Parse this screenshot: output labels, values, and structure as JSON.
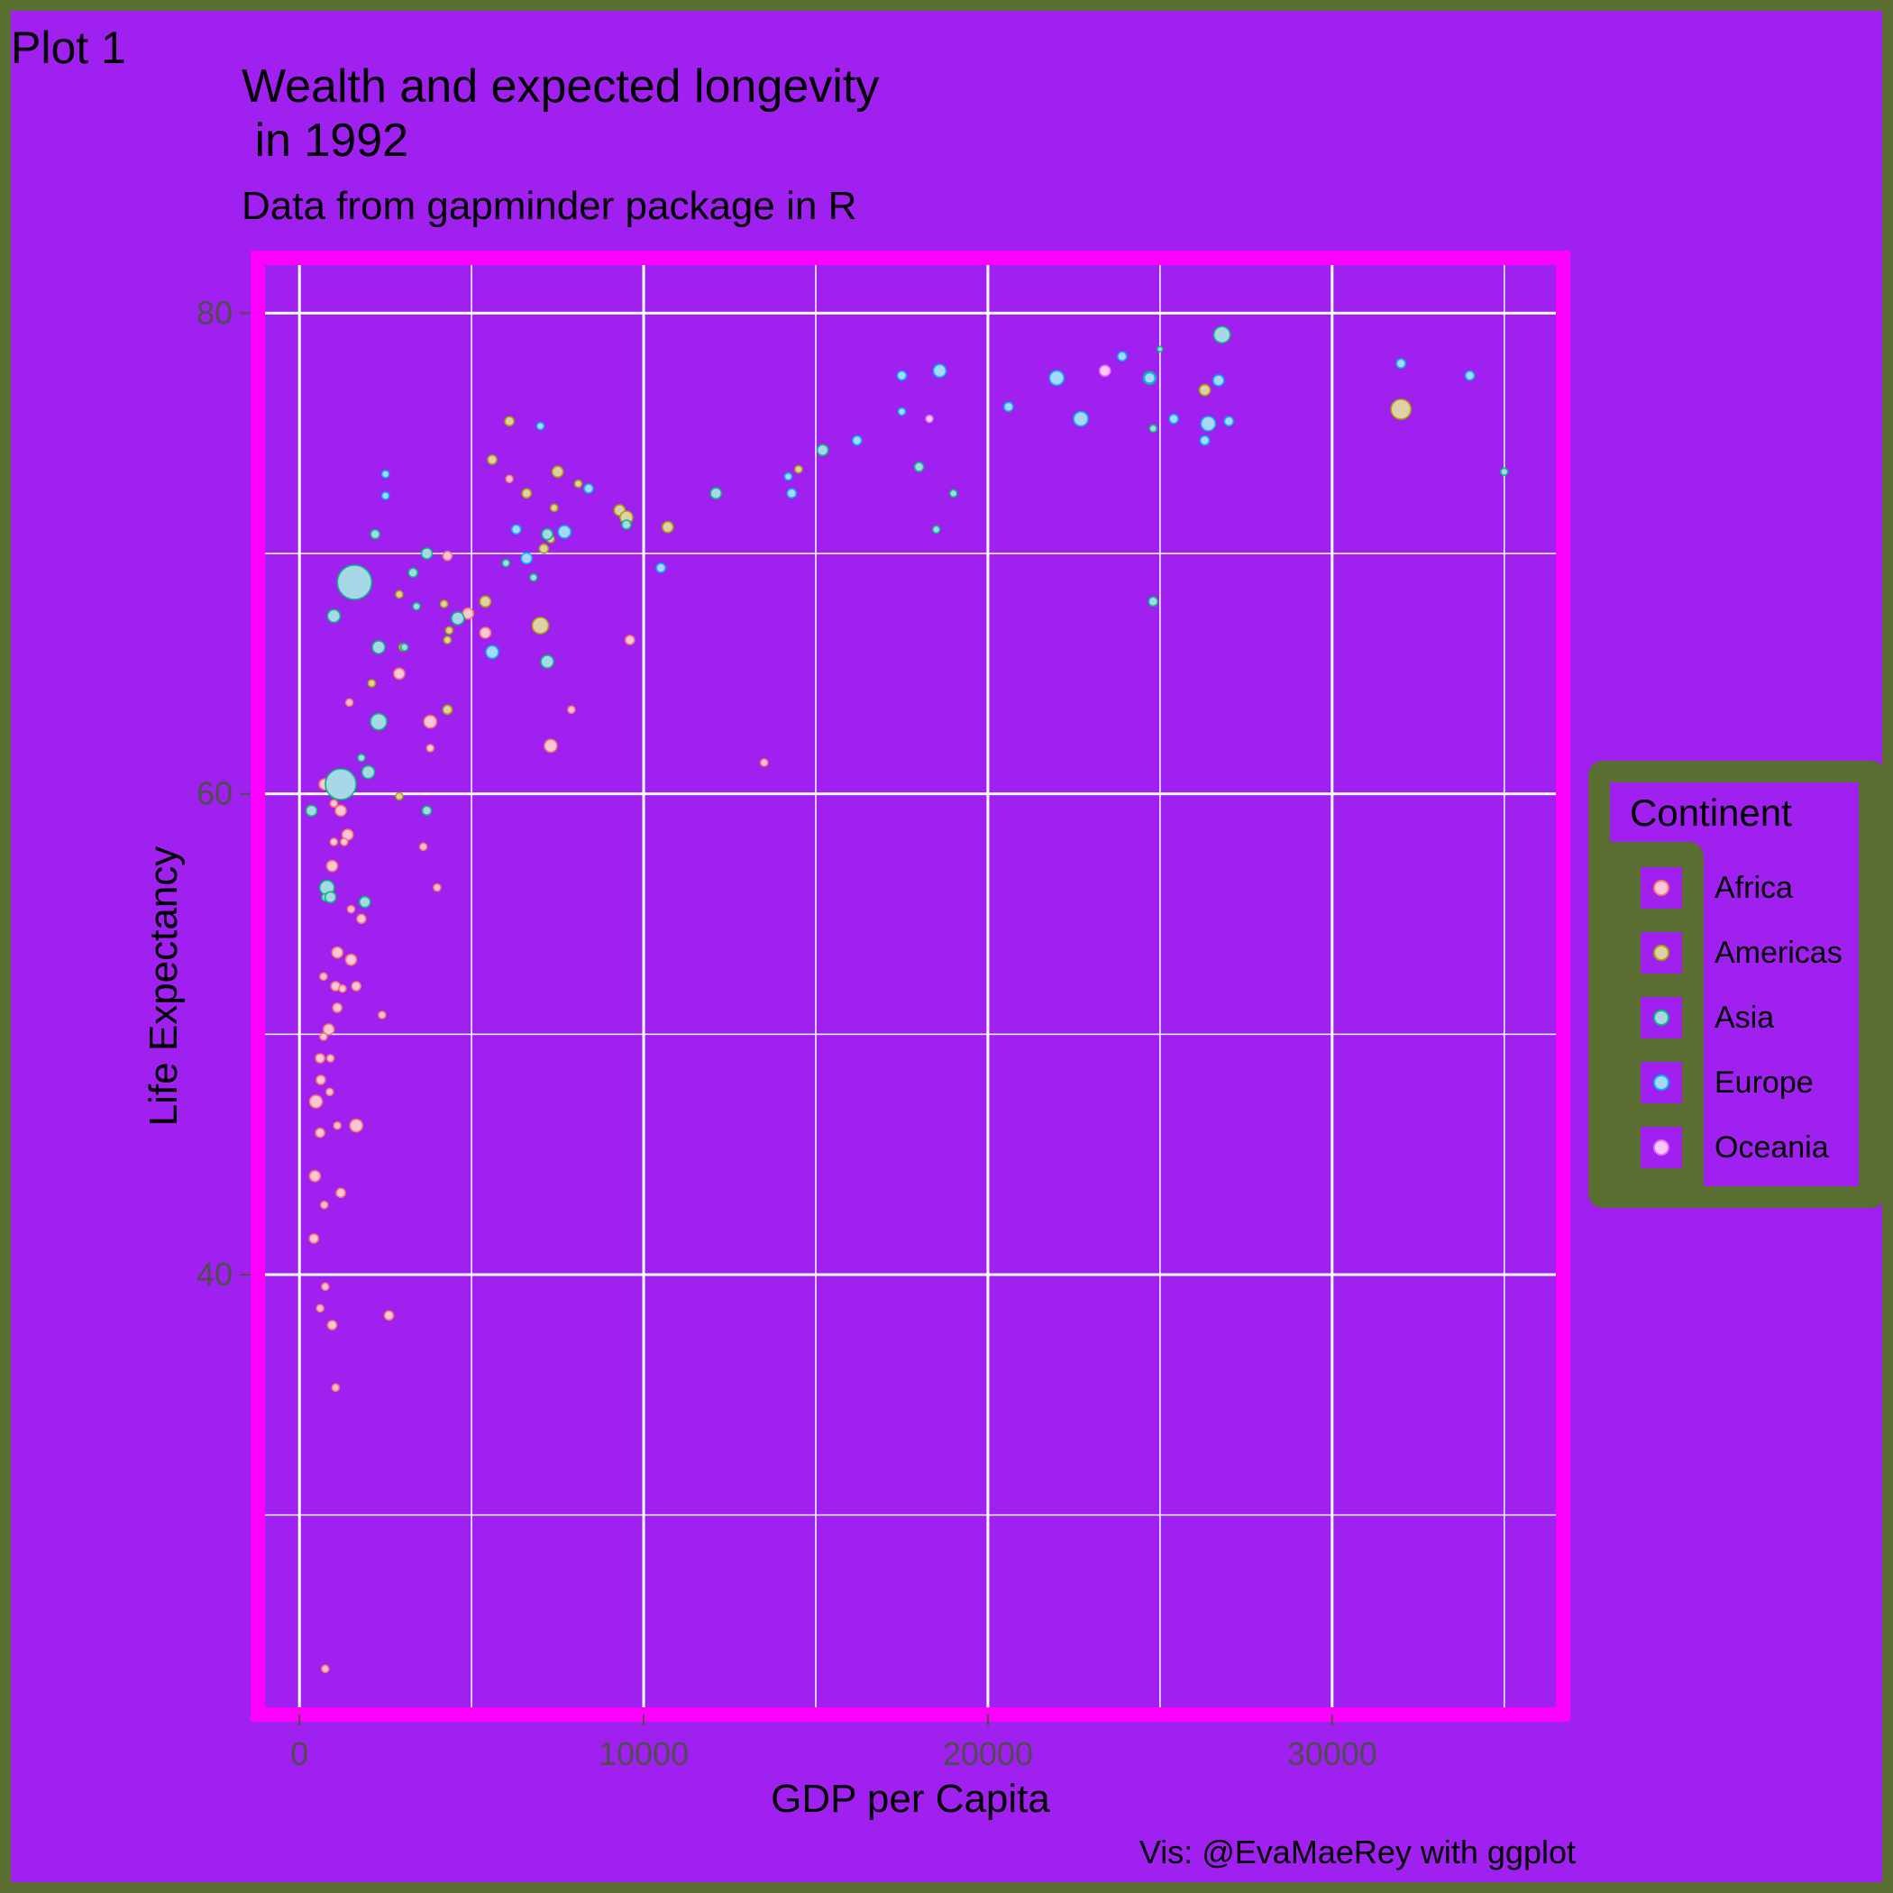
{
  "plot_tag": "Plot 1",
  "title": "Wealth and expected longevity\n in 1992",
  "subtitle": "Data from gapminder package in R",
  "caption": "Vis: @EvaMaeRey with ggplot",
  "colors": {
    "background": "#5a6e32",
    "panel": "#a020f0",
    "panel_border": "#ff00ff",
    "grid": "#ffffff",
    "continents": {
      "Africa": {
        "fill": "#f8c8d8",
        "stroke": "#f8766d"
      },
      "Americas": {
        "fill": "#e0d0a8",
        "stroke": "#a3a500"
      },
      "Asia": {
        "fill": "#a8d8e8",
        "stroke": "#00bf7d"
      },
      "Europe": {
        "fill": "#a8d8f8",
        "stroke": "#00b0f6"
      },
      "Oceania": {
        "fill": "#f8c8f8",
        "stroke": "#e76bf3"
      }
    }
  },
  "chart_data": {
    "type": "scatter",
    "xlabel": "GDP per Capita",
    "ylabel": "Life Expectancy",
    "xlim": [
      -1000,
      36500
    ],
    "ylim": [
      22,
      82
    ],
    "x_ticks": [
      0,
      10000,
      20000,
      30000
    ],
    "x_tick_labels": [
      "0",
      "10000",
      "20000",
      "30000"
    ],
    "y_ticks": [
      40,
      60,
      80
    ],
    "y_tick_labels": [
      "40",
      "60",
      "80"
    ],
    "grid": true,
    "legend_title": "Continent",
    "legend_position": "right",
    "legend_entries": [
      "Africa",
      "Americas",
      "Asia",
      "Europe",
      "Oceania"
    ],
    "series": [
      {
        "name": "Africa",
        "points": [
          [
            750,
            23.6,
            4
          ],
          [
            730,
            60.4,
            6
          ],
          [
            1000,
            59.6,
            4
          ],
          [
            1200,
            59.3,
            6
          ],
          [
            1400,
            58.3,
            6
          ],
          [
            1300,
            58.0,
            4
          ],
          [
            1000,
            58.0,
            4
          ],
          [
            950,
            57.0,
            6
          ],
          [
            1500,
            55.2,
            4
          ],
          [
            1100,
            53.4,
            6
          ],
          [
            1800,
            54.8,
            5
          ],
          [
            1500,
            53.1,
            6
          ],
          [
            700,
            52.4,
            4
          ],
          [
            1050,
            52.0,
            5
          ],
          [
            1250,
            51.9,
            4
          ],
          [
            1100,
            51.1,
            5
          ],
          [
            1650,
            52.0,
            5
          ],
          [
            2400,
            50.8,
            4
          ],
          [
            850,
            50.2,
            6
          ],
          [
            700,
            49.9,
            4
          ],
          [
            600,
            49.0,
            5
          ],
          [
            900,
            49.0,
            4
          ],
          [
            620,
            48.1,
            5
          ],
          [
            880,
            47.6,
            4
          ],
          [
            480,
            47.2,
            7
          ],
          [
            600,
            45.9,
            5
          ],
          [
            1100,
            46.2,
            4
          ],
          [
            1650,
            46.2,
            7
          ],
          [
            450,
            44.1,
            6
          ],
          [
            1200,
            43.4,
            5
          ],
          [
            720,
            42.9,
            4
          ],
          [
            420,
            41.5,
            5
          ],
          [
            750,
            39.5,
            4
          ],
          [
            600,
            38.6,
            4
          ],
          [
            950,
            37.9,
            5
          ],
          [
            1050,
            35.3,
            4
          ],
          [
            2600,
            38.3,
            5
          ],
          [
            1450,
            63.8,
            4
          ],
          [
            2900,
            65.0,
            6
          ],
          [
            3800,
            63.0,
            7
          ],
          [
            3800,
            61.9,
            4
          ],
          [
            3600,
            57.8,
            4
          ],
          [
            4000,
            56.1,
            4
          ],
          [
            4300,
            69.9,
            5
          ],
          [
            4900,
            67.5,
            6
          ],
          [
            5400,
            66.7,
            6
          ],
          [
            6100,
            73.1,
            4
          ],
          [
            9600,
            66.4,
            5
          ],
          [
            7900,
            63.5,
            4
          ],
          [
            7300,
            62.0,
            7
          ],
          [
            13500,
            61.3,
            4
          ]
        ]
      },
      {
        "name": "Americas",
        "points": [
          [
            2900,
            59.9,
            4
          ],
          [
            2100,
            64.6,
            4
          ],
          [
            3000,
            66.1,
            4
          ],
          [
            2900,
            68.3,
            4
          ],
          [
            4200,
            67.9,
            4
          ],
          [
            4300,
            66.4,
            4
          ],
          [
            4350,
            66.8,
            4
          ],
          [
            4300,
            63.5,
            5
          ],
          [
            5400,
            68.0,
            6
          ],
          [
            5600,
            73.9,
            5
          ],
          [
            6100,
            75.5,
            5
          ],
          [
            6600,
            72.5,
            5
          ],
          [
            7500,
            73.4,
            6
          ],
          [
            7400,
            71.9,
            4
          ],
          [
            8100,
            72.9,
            4
          ],
          [
            7300,
            70.6,
            4
          ],
          [
            7100,
            70.2,
            5
          ],
          [
            7000,
            67.0,
            9
          ],
          [
            9300,
            71.8,
            6
          ],
          [
            9500,
            71.5,
            7
          ],
          [
            10700,
            71.1,
            6
          ],
          [
            14500,
            73.5,
            4
          ],
          [
            26300,
            76.8,
            6
          ],
          [
            32000,
            76.0,
            11
          ]
        ]
      },
      {
        "name": "Asia",
        "points": [
          [
            1600,
            68.8,
            19
          ],
          [
            1200,
            60.4,
            17
          ],
          [
            2300,
            63.0,
            9
          ],
          [
            2000,
            60.9,
            7
          ],
          [
            1800,
            61.5,
            4
          ],
          [
            350,
            59.3,
            6
          ],
          [
            800,
            56.1,
            8
          ],
          [
            750,
            55.7,
            4
          ],
          [
            900,
            55.7,
            6
          ],
          [
            1900,
            55.5,
            6
          ],
          [
            3700,
            59.3,
            5
          ],
          [
            3300,
            69.2,
            5
          ],
          [
            3700,
            70.0,
            6
          ],
          [
            3400,
            67.8,
            4
          ],
          [
            2200,
            70.8,
            5
          ],
          [
            1000,
            67.4,
            7
          ],
          [
            2300,
            66.1,
            7
          ],
          [
            3050,
            66.1,
            4
          ],
          [
            4600,
            67.3,
            7
          ],
          [
            6000,
            69.6,
            4
          ],
          [
            6800,
            69.0,
            4
          ],
          [
            7200,
            70.8,
            6
          ],
          [
            7200,
            65.5,
            7
          ],
          [
            9500,
            71.2,
            5
          ],
          [
            12100,
            72.5,
            6
          ],
          [
            15200,
            74.3,
            6
          ],
          [
            18000,
            73.6,
            5
          ],
          [
            18500,
            71.0,
            4
          ],
          [
            19000,
            72.5,
            4
          ],
          [
            24800,
            68.0,
            5
          ],
          [
            24800,
            75.2,
            4
          ],
          [
            25000,
            78.5,
            3
          ],
          [
            24700,
            77.3,
            7
          ],
          [
            26800,
            79.1,
            9
          ],
          [
            27000,
            75.5,
            4
          ],
          [
            35000,
            73.4,
            4
          ]
        ]
      },
      {
        "name": "Europe",
        "points": [
          [
            2500,
            72.4,
            4
          ],
          [
            2500,
            73.3,
            4
          ],
          [
            6300,
            71.0,
            5
          ],
          [
            7000,
            75.3,
            4
          ],
          [
            6600,
            69.8,
            6
          ],
          [
            7700,
            70.9,
            7
          ],
          [
            8400,
            72.7,
            5
          ],
          [
            5600,
            65.9,
            7
          ],
          [
            10500,
            69.4,
            5
          ],
          [
            14200,
            73.2,
            4
          ],
          [
            14300,
            72.5,
            5
          ],
          [
            16200,
            74.7,
            5
          ],
          [
            17500,
            75.9,
            4
          ],
          [
            17500,
            77.4,
            5
          ],
          [
            18600,
            77.6,
            7
          ],
          [
            20600,
            76.1,
            5
          ],
          [
            22000,
            77.3,
            8
          ],
          [
            22700,
            75.6,
            8
          ],
          [
            23900,
            78.2,
            5
          ],
          [
            24700,
            77.3,
            6
          ],
          [
            25400,
            75.6,
            5
          ],
          [
            26300,
            74.7,
            5
          ],
          [
            26400,
            75.4,
            8
          ],
          [
            26700,
            77.2,
            6
          ],
          [
            27000,
            75.5,
            5
          ],
          [
            32000,
            77.9,
            5
          ],
          [
            34000,
            77.4,
            5
          ]
        ]
      },
      {
        "name": "Oceania",
        "points": [
          [
            18300,
            75.6,
            4
          ],
          [
            23400,
            77.6,
            6
          ]
        ]
      }
    ]
  }
}
